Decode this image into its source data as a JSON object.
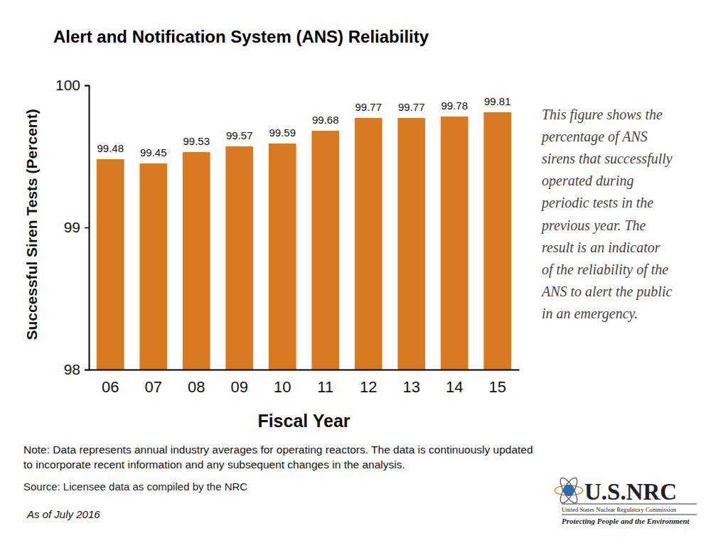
{
  "chart_data": {
    "type": "bar",
    "title": "Alert and Notification System (ANS) Reliability",
    "x_label": "Fiscal Year",
    "y_label": "Successful Siren Tests (Percent)",
    "categories": [
      "06",
      "07",
      "08",
      "09",
      "10",
      "11",
      "12",
      "13",
      "14",
      "15"
    ],
    "values": [
      99.48,
      99.45,
      99.53,
      99.57,
      99.59,
      99.68,
      99.77,
      99.77,
      99.78,
      99.81
    ],
    "color": "#d97a21",
    "ylim": [
      98,
      100
    ],
    "yticks": [
      98,
      99,
      100
    ],
    "grid": false,
    "data_labels": true,
    "annotation": [
      "This figure shows the",
      "percentage of ANS",
      "sirens that successfully",
      "operated during",
      "periodic tests in the",
      "previous year. The",
      "result is an indicator",
      "of the reliability of the",
      "ANS to alert the public",
      "in an emergency."
    ],
    "note": [
      "Note: Data represents annual industry averages for operating reactors. The data is continuously updated",
      "to incorporate recent information and any subsequent changes in the analysis."
    ],
    "source": "Source: Licensee data as compiled by the NRC",
    "date": "As of July 2016",
    "logo": {
      "text": "U.S.NRC",
      "subtitle": "United States Nuclear Regulatory Commission",
      "tagline": "Protecting People and the Environment"
    }
  }
}
